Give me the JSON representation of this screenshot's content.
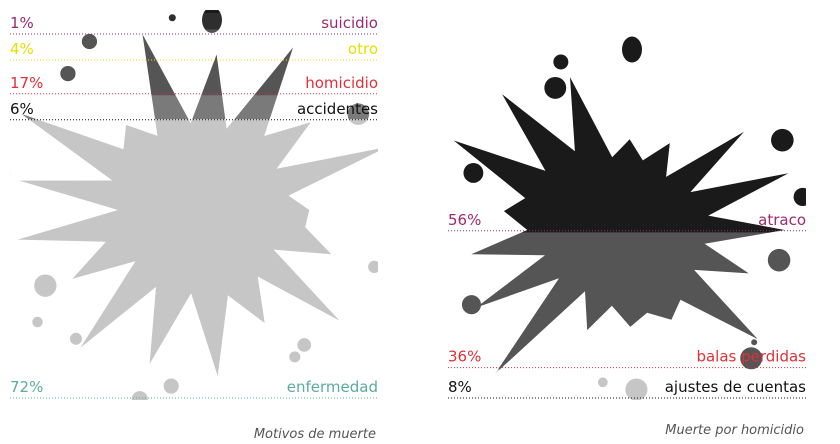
{
  "chart_data": [
    {
      "type": "splatter",
      "title": "Motivos de muerte",
      "categories": [
        "suicidio",
        "otro",
        "homicidio",
        "accidentes",
        "enfermedad"
      ],
      "values": [
        1,
        4,
        17,
        6,
        72
      ],
      "value_labels": [
        "1%",
        "4%",
        "17%",
        "6%",
        "72%"
      ],
      "colors": [
        "#9c2a6e",
        "#e6e000",
        "#e0303a",
        "#111111",
        "#5aaba0"
      ],
      "fills": [
        "#1a1a1a",
        "#2e2e2e",
        "#555555",
        "#7a7a7a",
        "#c6c6c6"
      ]
    },
    {
      "type": "splatter",
      "title": "Muerte por homicidio",
      "categories": [
        "atraco",
        "balas perdidas",
        "ajustes de cuentas"
      ],
      "values": [
        56,
        36,
        8
      ],
      "value_labels": [
        "56%",
        "36%",
        "8%"
      ],
      "colors": [
        "#9c2a6e",
        "#e0303a",
        "#111111"
      ],
      "fills": [
        "#1a1a1a",
        "#555555",
        "#c6c6c6"
      ]
    }
  ]
}
